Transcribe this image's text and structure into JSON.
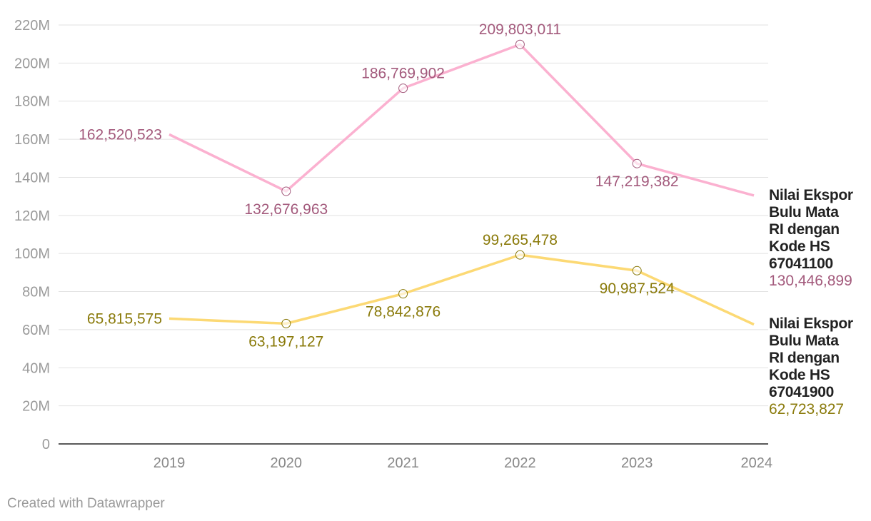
{
  "chart_data": {
    "type": "line",
    "x": [
      "2019",
      "2020",
      "2021",
      "2022",
      "2023",
      "2024"
    ],
    "ylim": [
      0,
      220000000
    ],
    "yticks": [
      {
        "value": 0,
        "label": "0"
      },
      {
        "value": 20000000,
        "label": "20M"
      },
      {
        "value": 40000000,
        "label": "40M"
      },
      {
        "value": 60000000,
        "label": "60M"
      },
      {
        "value": 80000000,
        "label": "80M"
      },
      {
        "value": 100000000,
        "label": "100M"
      },
      {
        "value": 120000000,
        "label": "120M"
      },
      {
        "value": 140000000,
        "label": "140M"
      },
      {
        "value": 160000000,
        "label": "160M"
      },
      {
        "value": 180000000,
        "label": "180M"
      },
      {
        "value": 200000000,
        "label": "200M"
      },
      {
        "value": 220000000,
        "label": "220M"
      }
    ],
    "grid": true,
    "series": [
      {
        "name": "Nilai Ekspor Bulu Mata RI dengan Kode HS 67041100",
        "name_lines": [
          "Nilai Ekspor",
          "Bulu Mata",
          "RI dengan",
          "Kode HS",
          "67041100"
        ],
        "color": "#fbb1d0",
        "label_color": "#a35a7c",
        "values": [
          162520523,
          132676963,
          186769902,
          209803011,
          147219382,
          130446899
        ],
        "labels": [
          "162,520,523",
          "132,676,963",
          "186,769,902",
          "209,803,011",
          "147,219,382",
          "130,446,899"
        ],
        "label_pos": [
          "left",
          "below",
          "above",
          "above",
          "below",
          "end"
        ]
      },
      {
        "name": "Nilai Ekspor Bulu Mata RI dengan Kode HS 67041900",
        "name_lines": [
          "Nilai Ekspor",
          "Bulu Mata",
          "RI dengan",
          "Kode HS",
          "67041900"
        ],
        "color": "#fcd974",
        "label_color": "#8a7a0a",
        "values": [
          65815575,
          63197127,
          78842876,
          99265478,
          90987524,
          62723827
        ],
        "labels": [
          "65,815,575",
          "63,197,127",
          "78,842,876",
          "99,265,478",
          "90,987,524",
          "62,723,827"
        ],
        "label_pos": [
          "left",
          "below",
          "below",
          "above",
          "below",
          "end"
        ]
      }
    ]
  },
  "footer": {
    "credit": "Created with Datawrapper"
  }
}
